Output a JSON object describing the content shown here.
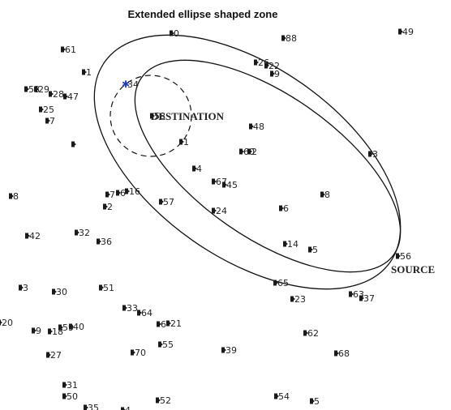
{
  "title": "Extended ellipse shaped zone",
  "destination_label": "DESTINATION",
  "source_label": "SOURCE",
  "colors": {
    "node": "#1a1a1a",
    "highlight": "#1f3fbf",
    "line": "#111111"
  },
  "nodes": [
    {
      "label": "0"
    },
    {
      "label": "88"
    },
    {
      "label": "49"
    },
    {
      "label": "61"
    },
    {
      "label": "26"
    },
    {
      "label": "22"
    },
    {
      "label": "9"
    },
    {
      "label": "1"
    },
    {
      "label": "53"
    },
    {
      "label": "29"
    },
    {
      "label": "28"
    },
    {
      "label": "47"
    },
    {
      "label": "34"
    },
    {
      "label": "25"
    },
    {
      "label": "7"
    },
    {
      "label": "58"
    },
    {
      "label": "48"
    },
    {
      "label": "1"
    },
    {
      "label": ""
    },
    {
      "label": "60"
    },
    {
      "label": "2"
    },
    {
      "label": "3"
    },
    {
      "label": "4"
    },
    {
      "label": "67"
    },
    {
      "label": "45"
    },
    {
      "label": "7"
    },
    {
      "label": "6"
    },
    {
      "label": "16"
    },
    {
      "label": "8"
    },
    {
      "label": "2"
    },
    {
      "label": "57"
    },
    {
      "label": "24"
    },
    {
      "label": "6"
    },
    {
      "label": "8"
    },
    {
      "label": "42"
    },
    {
      "label": "32"
    },
    {
      "label": "36"
    },
    {
      "label": "14"
    },
    {
      "label": "5"
    },
    {
      "label": "56"
    },
    {
      "label": "3"
    },
    {
      "label": "30"
    },
    {
      "label": "51"
    },
    {
      "label": "65"
    },
    {
      "label": "23"
    },
    {
      "label": "63"
    },
    {
      "label": "37"
    },
    {
      "label": "33"
    },
    {
      "label": "64"
    },
    {
      "label": "20"
    },
    {
      "label": "9"
    },
    {
      "label": "18"
    },
    {
      "label": "59"
    },
    {
      "label": "40"
    },
    {
      "label": "6"
    },
    {
      "label": "21"
    },
    {
      "label": "62"
    },
    {
      "label": "27"
    },
    {
      "label": "70"
    },
    {
      "label": "55"
    },
    {
      "label": "39"
    },
    {
      "label": "68"
    },
    {
      "label": "31"
    },
    {
      "label": "50"
    },
    {
      "label": "35"
    },
    {
      "label": "4"
    },
    {
      "label": "52"
    },
    {
      "label": "54"
    },
    {
      "label": "5"
    }
  ]
}
